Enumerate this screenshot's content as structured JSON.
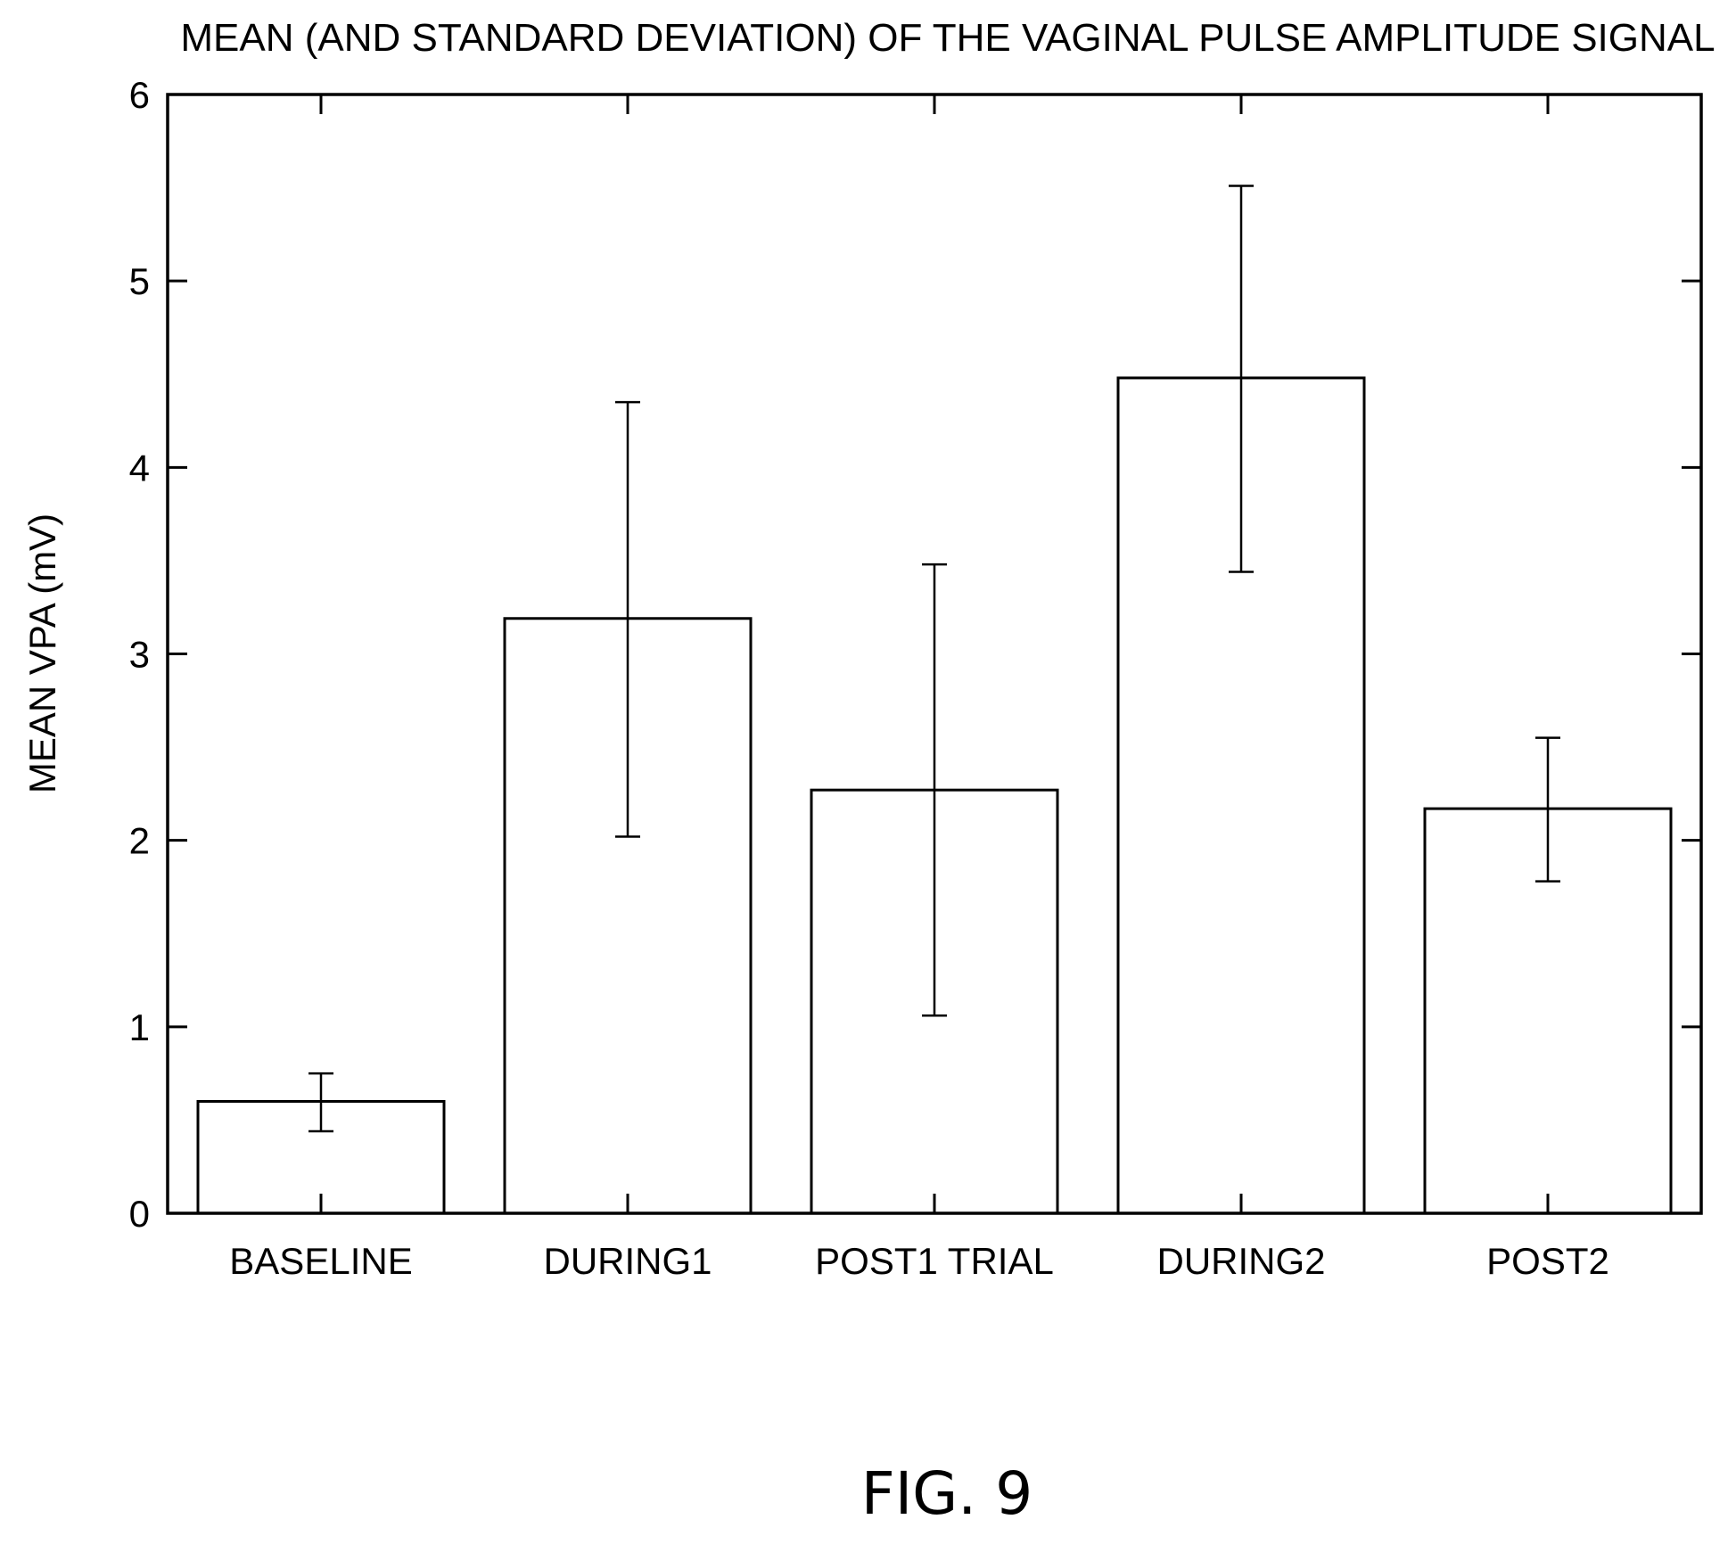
{
  "figure_label": "FIG. 9",
  "colors": {
    "bar_fill": "#ffffff",
    "bar_stroke": "#000000",
    "axis": "#000000",
    "background": "#ffffff"
  },
  "chart_data": {
    "type": "bar",
    "title": "MEAN (AND STANDARD DEVIATION) OF THE VAGINAL PULSE AMPLITUDE SIGNAL",
    "xlabel": "",
    "ylabel": "MEAN VPA (mV)",
    "categories": [
      "BASELINE",
      "DURING1",
      "POST1 TRIAL",
      "DURING2",
      "POST2"
    ],
    "values": [
      0.6,
      3.19,
      2.27,
      4.48,
      2.17
    ],
    "error_bars": {
      "lower": [
        0.44,
        2.02,
        1.06,
        3.44,
        1.78
      ],
      "upper": [
        0.75,
        4.35,
        3.48,
        5.51,
        2.55
      ]
    },
    "ylim": [
      0,
      6
    ],
    "yticks": [
      "0",
      "1",
      "2",
      "3",
      "4",
      "5",
      "6"
    ],
    "grid": false,
    "legend": "none"
  }
}
